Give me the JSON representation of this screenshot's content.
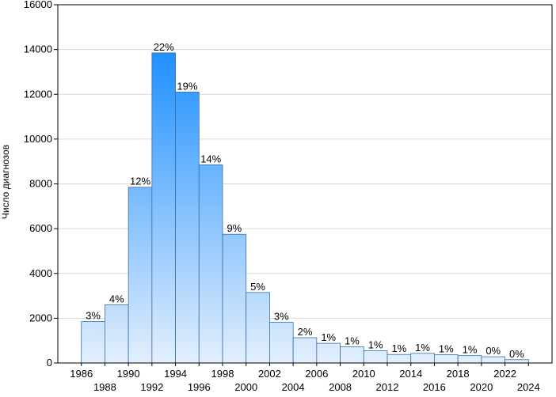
{
  "chart_data": {
    "type": "bar",
    "title": "",
    "xlabel": "",
    "ylabel": "Число диагнозов",
    "ylim": [
      0,
      16000
    ],
    "yticks": [
      0,
      2000,
      4000,
      6000,
      8000,
      10000,
      12000,
      14000,
      16000
    ],
    "xlim": [
      1984,
      2026
    ],
    "xticks_upper": [
      "1986",
      "1990",
      "1994",
      "1998",
      "2002",
      "2006",
      "2010",
      "2014",
      "2018",
      "2022"
    ],
    "xticks_lower": [
      "1988",
      "1992",
      "1996",
      "2000",
      "2004",
      "2008",
      "2012",
      "2016",
      "2020",
      "2024"
    ],
    "grid": true,
    "bin_width": 2,
    "bins": [
      {
        "start": 1986,
        "end": 1988,
        "value": 1850,
        "label": "3%"
      },
      {
        "start": 1988,
        "end": 1990,
        "value": 2600,
        "label": "4%"
      },
      {
        "start": 1990,
        "end": 1992,
        "value": 7850,
        "label": "12%"
      },
      {
        "start": 1992,
        "end": 1994,
        "value": 13850,
        "label": "22%"
      },
      {
        "start": 1994,
        "end": 1996,
        "value": 12100,
        "label": "19%"
      },
      {
        "start": 1996,
        "end": 1998,
        "value": 8850,
        "label": "14%"
      },
      {
        "start": 1998,
        "end": 2000,
        "value": 5750,
        "label": "9%"
      },
      {
        "start": 2000,
        "end": 2002,
        "value": 3150,
        "label": "5%"
      },
      {
        "start": 2002,
        "end": 2004,
        "value": 1820,
        "label": "3%"
      },
      {
        "start": 2004,
        "end": 2006,
        "value": 1130,
        "label": "2%"
      },
      {
        "start": 2006,
        "end": 2008,
        "value": 880,
        "label": "1%"
      },
      {
        "start": 2008,
        "end": 2010,
        "value": 720,
        "label": "1%"
      },
      {
        "start": 2010,
        "end": 2012,
        "value": 550,
        "label": "1%"
      },
      {
        "start": 2012,
        "end": 2014,
        "value": 380,
        "label": "1%"
      },
      {
        "start": 2014,
        "end": 2016,
        "value": 430,
        "label": "1%"
      },
      {
        "start": 2016,
        "end": 2018,
        "value": 370,
        "label": "1%"
      },
      {
        "start": 2018,
        "end": 2020,
        "value": 330,
        "label": "1%"
      },
      {
        "start": 2020,
        "end": 2022,
        "value": 280,
        "label": "0%"
      },
      {
        "start": 2022,
        "end": 2024,
        "value": 150,
        "label": "0%"
      }
    ],
    "colors": {
      "bar_low": "#e3effc",
      "bar_high": "#1e90ff",
      "bar_stroke": "#3a6ea5",
      "grid": "#d9d9d9",
      "axis": "#000000"
    }
  }
}
